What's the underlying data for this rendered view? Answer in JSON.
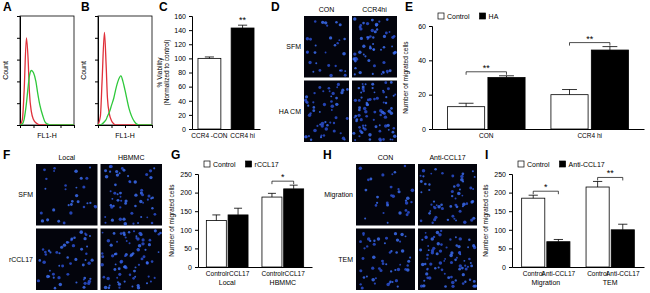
{
  "chart_data": [
    {
      "type": "line",
      "title": "A",
      "xlabel": "FL1-H",
      "ylabel": "Count",
      "log": "x",
      "tick_labels": false,
      "xlim": [
        1,
        10000
      ],
      "xticks": [
        1,
        10,
        100,
        1000,
        10000
      ],
      "ylim": [
        0,
        100
      ],
      "yticks": [
        0,
        20,
        40,
        60,
        80,
        100
      ],
      "x": [
        1,
        1.5,
        2,
        3,
        4,
        5,
        7,
        10,
        15,
        20,
        30,
        50,
        70,
        100,
        200,
        500,
        1000,
        10000
      ],
      "series": [
        {
          "color": "#e0303a",
          "values": [
            0,
            5,
            30,
            80,
            60,
            30,
            12,
            5,
            2,
            1,
            0,
            0,
            0,
            0,
            0,
            0,
            0,
            0
          ]
        },
        {
          "color": "#2ec83a",
          "values": [
            0,
            1,
            5,
            20,
            35,
            45,
            50,
            48,
            40,
            30,
            18,
            8,
            3,
            1,
            0,
            0,
            0,
            0
          ]
        }
      ]
    },
    {
      "type": "line",
      "title": "B",
      "xlabel": "FL1-H",
      "ylabel": "Count",
      "log": "x",
      "tick_labels": false,
      "xlim": [
        1,
        10000
      ],
      "xticks": [
        1,
        10,
        100,
        1000,
        10000
      ],
      "ylim": [
        0,
        100
      ],
      "yticks": [
        0,
        20,
        40,
        60,
        80,
        100
      ],
      "x": [
        1,
        1.5,
        2,
        3,
        4,
        5,
        7,
        10,
        15,
        20,
        30,
        50,
        70,
        100,
        200,
        500,
        1000,
        10000
      ],
      "series": [
        {
          "color": "#e0303a",
          "values": [
            0,
            8,
            40,
            85,
            55,
            25,
            10,
            4,
            1,
            0,
            0,
            0,
            0,
            0,
            0,
            0,
            0,
            0
          ]
        },
        {
          "color": "#2ec83a",
          "values": [
            0,
            0,
            1,
            3,
            5,
            8,
            12,
            18,
            25,
            32,
            40,
            45,
            40,
            32,
            15,
            3,
            0,
            0
          ]
        }
      ]
    },
    {
      "type": "bar",
      "title": "C",
      "ylabel": [
        "% Viability",
        "(Normalized to control)"
      ],
      "categories": [
        "CCR4 -CON",
        "CCR4 hi"
      ],
      "values": [
        100,
        143
      ],
      "errors": [
        2,
        4
      ],
      "colors": [
        "#ffffff",
        "#000000"
      ],
      "ylim": [
        0,
        160
      ],
      "yticks": [
        0,
        20,
        40,
        60,
        80,
        100,
        120,
        140,
        160
      ],
      "annotations": [
        null,
        "**"
      ]
    },
    {
      "type": "image",
      "title": "D",
      "column_labels": [
        "CON",
        "CCR4hi"
      ],
      "row_labels": [
        "SFM",
        "HA CM"
      ]
    },
    {
      "type": "bar",
      "title": "E",
      "ylabel": "Number of migrated cells",
      "categories": [
        "CON",
        "CCR4 hi"
      ],
      "series": [
        {
          "name": "Control",
          "color": "#ffffff",
          "values": [
            13,
            20
          ],
          "errors": [
            2,
            3
          ]
        },
        {
          "name": "HA",
          "color": "#000000",
          "values": [
            30,
            46
          ],
          "errors": [
            1,
            2
          ]
        }
      ],
      "ylim": [
        0,
        60
      ],
      "yticks": [
        0,
        20,
        40,
        60
      ],
      "legend": "top-left",
      "annotations": [
        "**",
        "**"
      ]
    },
    {
      "type": "image",
      "title": "F",
      "column_labels": [
        "Local",
        "HBMMC"
      ],
      "row_labels": [
        "SFM",
        "rCCL17"
      ]
    },
    {
      "type": "bar",
      "title": "G",
      "ylabel": "Number of migrated cells",
      "categories": [
        "Local",
        "HBMMC"
      ],
      "bar_labels": [
        "Control",
        "rCCL17",
        "Control",
        "rCCL17"
      ],
      "series": [
        {
          "name": "Control",
          "color": "#ffffff",
          "values": [
            125,
            188
          ],
          "errors": [
            15,
            10
          ]
        },
        {
          "name": "rCCL17",
          "color": "#000000",
          "values": [
            140,
            210
          ],
          "errors": [
            18,
            10
          ]
        }
      ],
      "ylim": [
        0,
        250
      ],
      "yticks": [
        0,
        50,
        100,
        150,
        200,
        250
      ],
      "legend": "top-left",
      "annotations": [
        null,
        "*"
      ]
    },
    {
      "type": "image",
      "title": "H",
      "column_labels": [
        "CON",
        "Anti-CCL17"
      ],
      "row_labels": [
        "Migration",
        "TEM"
      ]
    },
    {
      "type": "bar",
      "title": "I",
      "ylabel": "Number of migrated cells",
      "categories": [
        "Migration",
        "TEM"
      ],
      "bar_labels": [
        "Control",
        "Anti-CCL17",
        "Control",
        "Anti-CCL17"
      ],
      "series": [
        {
          "name": "Control",
          "color": "#ffffff",
          "values": [
            185,
            215
          ],
          "errors": [
            8,
            15
          ]
        },
        {
          "name": "Anti-CCL17",
          "color": "#000000",
          "values": [
            68,
            100
          ],
          "errors": [
            6,
            15
          ]
        }
      ],
      "ylim": [
        0,
        250
      ],
      "yticks": [
        0,
        50,
        100,
        150,
        200,
        250
      ],
      "legend": "top-left",
      "annotations": [
        "*",
        "**"
      ]
    }
  ]
}
